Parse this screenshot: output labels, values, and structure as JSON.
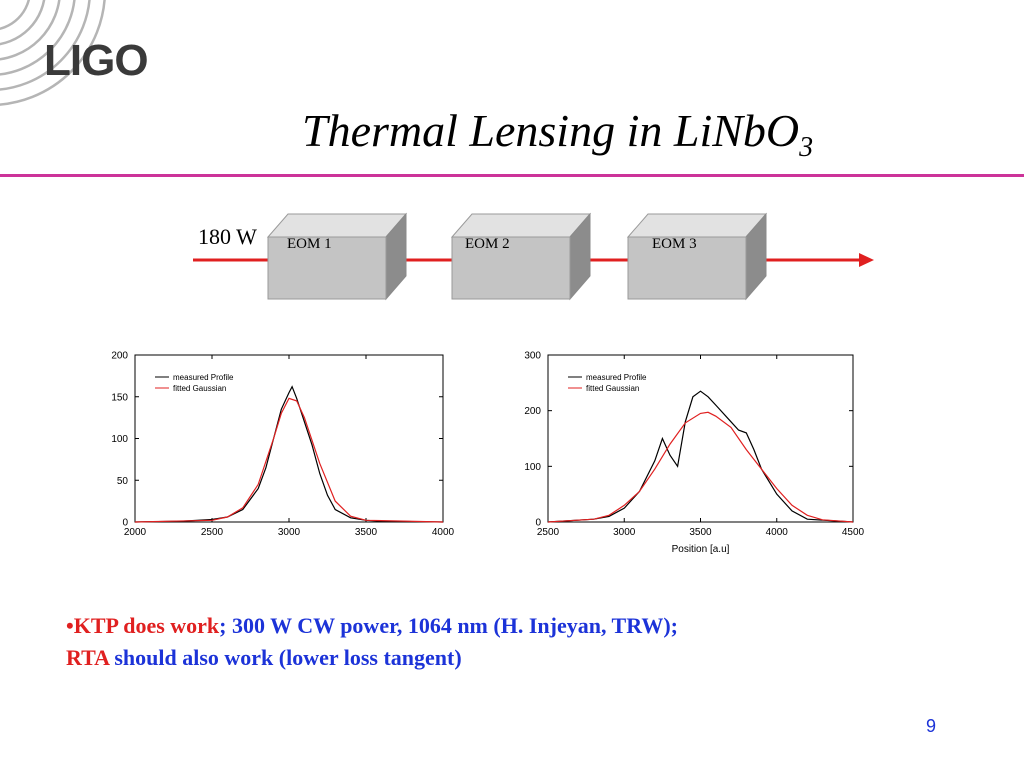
{
  "header": {
    "logo_text": "LIGO",
    "title_main": "Thermal Lensing in LiNbO",
    "title_subscript": "3"
  },
  "diagram": {
    "power_label": "180 W",
    "eoms": [
      "EOM 1",
      "EOM 2",
      "EOM 3"
    ],
    "beam_color": "#e02020"
  },
  "chart_data": [
    {
      "type": "line",
      "xlim": [
        2000,
        4000
      ],
      "ylim": [
        0,
        200
      ],
      "xticks": [
        "2000",
        "2500",
        "3000",
        "3500",
        "4000"
      ],
      "yticks": [
        "0",
        "50",
        "100",
        "150",
        "200"
      ],
      "xlabel": "",
      "ylabel": "",
      "legend_position": "top-left",
      "series": [
        {
          "name": "measured Profile",
          "color": "#000000",
          "x": [
            2000,
            2300,
            2500,
            2600,
            2700,
            2800,
            2850,
            2900,
            2950,
            3000,
            3020,
            3050,
            3100,
            3150,
            3200,
            3250,
            3300,
            3400,
            3500,
            3600,
            4000
          ],
          "y": [
            0,
            1,
            3,
            6,
            15,
            40,
            65,
            100,
            135,
            155,
            162,
            148,
            120,
            92,
            58,
            32,
            15,
            5,
            2,
            1,
            0
          ]
        },
        {
          "name": "fitted Gaussian",
          "color": "#e02020",
          "x": [
            2000,
            2500,
            2600,
            2700,
            2800,
            2900,
            2950,
            3000,
            3050,
            3100,
            3200,
            3300,
            3400,
            3500,
            4000
          ],
          "y": [
            0,
            2,
            6,
            17,
            45,
            100,
            130,
            148,
            145,
            125,
            70,
            25,
            7,
            2,
            0
          ]
        }
      ]
    },
    {
      "type": "line",
      "xlim": [
        2500,
        4500
      ],
      "ylim": [
        0,
        300
      ],
      "xticks": [
        "2500",
        "3000",
        "3500",
        "4000",
        "4500"
      ],
      "yticks": [
        "0",
        "100",
        "200",
        "300"
      ],
      "xlabel": "Position [a.u]",
      "ylabel": "",
      "legend_position": "top-left",
      "series": [
        {
          "name": "measured Profile",
          "color": "#000000",
          "x": [
            2500,
            2800,
            2900,
            3000,
            3100,
            3200,
            3250,
            3300,
            3350,
            3400,
            3450,
            3500,
            3550,
            3600,
            3700,
            3750,
            3800,
            3850,
            3900,
            4000,
            4100,
            4200,
            4500
          ],
          "y": [
            0,
            5,
            10,
            25,
            55,
            110,
            150,
            120,
            100,
            180,
            225,
            235,
            225,
            210,
            180,
            165,
            160,
            130,
            95,
            50,
            20,
            5,
            0
          ]
        },
        {
          "name": "fitted Gaussian",
          "color": "#e02020",
          "x": [
            2500,
            2800,
            2900,
            3000,
            3100,
            3200,
            3300,
            3400,
            3500,
            3550,
            3600,
            3700,
            3800,
            3900,
            4000,
            4100,
            4200,
            4300,
            4500
          ],
          "y": [
            0,
            5,
            12,
            30,
            55,
            95,
            140,
            178,
            195,
            197,
            190,
            170,
            130,
            95,
            60,
            30,
            12,
            4,
            0
          ]
        }
      ]
    }
  ],
  "footnote": {
    "bullet_char": "•",
    "part1": "KTP does work",
    "part2": "; 300 W CW power, 1064 nm (H. Injeyan, TRW);",
    "part3": "RTA",
    "part4": " should also work (lower loss tangent)"
  },
  "page_number": "9",
  "colors": {
    "accent_rule": "#cc3399",
    "text_red": "#e02020",
    "text_blue": "#1c33d8"
  }
}
